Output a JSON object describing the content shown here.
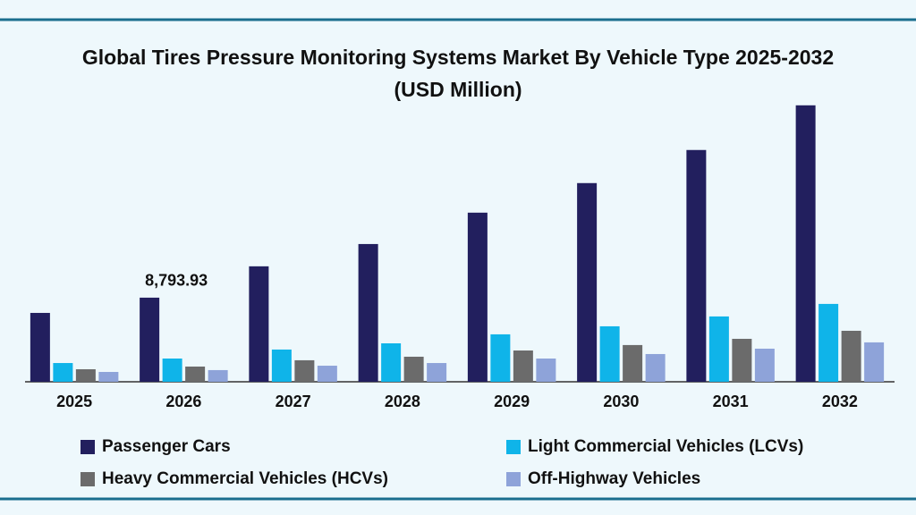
{
  "chart_data": {
    "type": "bar",
    "title": "Global Tires Pressure Monitoring Systems Market By Vehicle Type 2025-2032 (USD Million)",
    "categories": [
      "2025",
      "2026",
      "2027",
      "2028",
      "2029",
      "2030",
      "2031",
      "2032"
    ],
    "series": [
      {
        "name": "Passenger Cars",
        "color": "#221f5e",
        "values": [
          7200,
          8793.93,
          12070,
          14400,
          17680,
          20770,
          24230,
          28900
        ],
        "value_labels": [
          null,
          "8,793.93",
          null,
          null,
          null,
          null,
          null,
          null
        ]
      },
      {
        "name": "Light Commercial Vehicles (LCVs)",
        "color": "#0fb4e9",
        "values": [
          1960,
          2430,
          3370,
          4020,
          4960,
          5800,
          6830,
          8140
        ]
      },
      {
        "name": "Heavy Commercial Vehicles (HCVs)",
        "color": "#6b6b6b",
        "values": [
          1310,
          1590,
          2250,
          2620,
          3270,
          3840,
          4490,
          5330
        ]
      },
      {
        "name": "Off-Highway Vehicles",
        "color": "#8ea3d9",
        "values": [
          1030,
          1220,
          1680,
          1960,
          2430,
          2900,
          3460,
          4120
        ]
      }
    ],
    "ylim": [
      0,
      32900
    ]
  }
}
